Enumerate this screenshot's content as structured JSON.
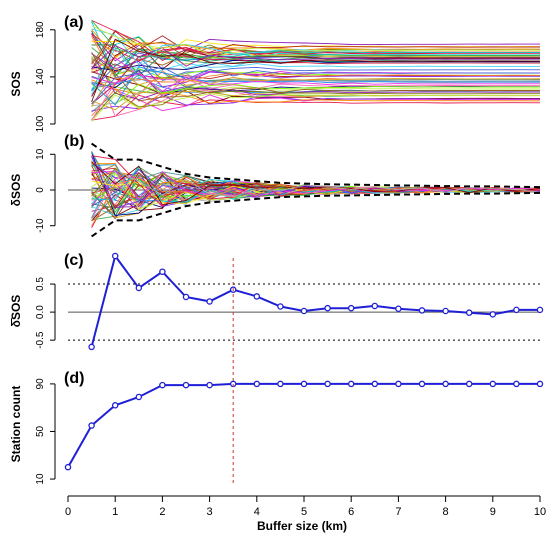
{
  "colors": {
    "curve": "#1f1fd6",
    "vline": "#c0392b",
    "envelope": "#000000",
    "axis": "#000000"
  },
  "chart_data": [
    {
      "panel": "(a)",
      "type": "line",
      "ylabel": "SOS",
      "yticks": [
        "100",
        "140",
        "180"
      ],
      "ylim": [
        100,
        190
      ],
      "note": "many station series converging toward ~145 with buffer size"
    },
    {
      "panel": "(b)",
      "type": "line",
      "ylabel": "δSOS",
      "yticks": [
        "-10",
        "0",
        "10"
      ],
      "ylim": [
        -14,
        14
      ],
      "envelope": {
        "x": [
          0.5,
          1,
          1.5,
          2,
          2.5,
          3,
          3.5,
          4,
          4.5,
          5,
          5.5,
          6,
          6.5,
          7,
          7.5,
          8,
          8.5,
          9,
          9.5,
          10
        ],
        "upper": [
          13,
          8.5,
          8.5,
          6.5,
          4.5,
          3.5,
          3,
          2.5,
          2,
          1.8,
          1.6,
          1.5,
          1.4,
          1.3,
          1.2,
          1.1,
          1,
          1,
          0.9,
          0.8
        ],
        "lower": [
          -13,
          -8.5,
          -8.5,
          -6.5,
          -4.5,
          -3.5,
          -3,
          -2.5,
          -2,
          -1.8,
          -1.6,
          -1.5,
          -1.4,
          -1.3,
          -1.2,
          -1.1,
          -1,
          -1,
          -0.9,
          -0.8
        ]
      }
    },
    {
      "panel": "(c)",
      "type": "line",
      "ylabel": "δ̄SOS",
      "yticks": [
        "-0.5",
        "0.0",
        "0.5"
      ],
      "ylim": [
        -0.8,
        1.0
      ],
      "hlines_dotted": [
        0.5,
        -0.5
      ],
      "x": [
        0.5,
        1,
        1.5,
        2,
        2.5,
        3,
        3.5,
        4,
        4.5,
        5,
        5.5,
        6,
        6.5,
        7,
        7.5,
        8,
        8.5,
        9,
        9.5,
        10
      ],
      "y": [
        -0.62,
        1.0,
        0.43,
        0.72,
        0.27,
        0.19,
        0.4,
        0.28,
        0.1,
        0.02,
        0.07,
        0.07,
        0.11,
        0.06,
        0.03,
        0.02,
        -0.01,
        -0.04,
        0.04,
        0.04
      ]
    },
    {
      "panel": "(d)",
      "type": "line",
      "ylabel": "Station count",
      "yticks": [
        "10",
        "50",
        "90"
      ],
      "ylim": [
        5,
        100
      ],
      "x": [
        0,
        0.5,
        1,
        1.5,
        2,
        2.5,
        3,
        3.5,
        4,
        4.5,
        5,
        5.5,
        6,
        6.5,
        7,
        7.5,
        8,
        8.5,
        9,
        9.5,
        10
      ],
      "y": [
        20,
        55,
        72,
        79,
        89,
        89,
        89,
        90,
        90,
        90,
        90,
        90,
        90,
        90,
        90,
        90,
        90,
        90,
        90,
        90,
        90
      ]
    }
  ],
  "x_axis": {
    "label": "Buffer size (km)",
    "ticks": [
      "0",
      "1",
      "2",
      "3",
      "4",
      "5",
      "6",
      "7",
      "8",
      "9",
      "10"
    ],
    "xlim": [
      0,
      10
    ],
    "vline_x": 3.5
  }
}
